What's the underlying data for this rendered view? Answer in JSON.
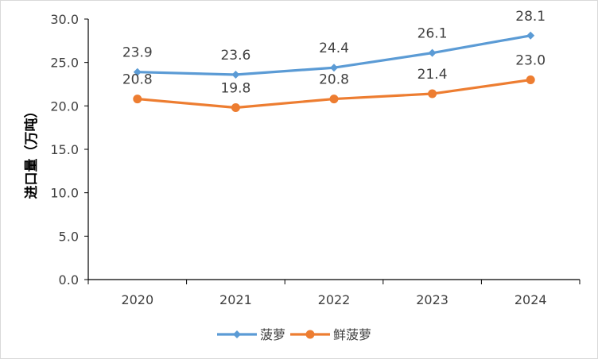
{
  "chart_data": {
    "type": "line",
    "title": "",
    "xlabel": "",
    "ylabel": "进口量（万吨）",
    "categories": [
      "2020",
      "2021",
      "2022",
      "2023",
      "2024"
    ],
    "ylim": [
      0,
      30
    ],
    "yticks": [
      "0.0",
      "5.0",
      "10.0",
      "15.0",
      "20.0",
      "25.0",
      "30.0"
    ],
    "ytick_values": [
      0,
      5,
      10,
      15,
      20,
      25,
      30
    ],
    "grid": false,
    "legend_position": "bottom",
    "series": [
      {
        "name": "菠萝",
        "values": [
          23.9,
          23.6,
          24.4,
          26.1,
          28.1
        ],
        "labels": [
          "23.9",
          "23.6",
          "24.4",
          "26.1",
          "28.1"
        ],
        "color": "#5b9bd5",
        "marker": "diamond"
      },
      {
        "name": "鲜菠萝",
        "values": [
          20.8,
          19.8,
          20.8,
          21.4,
          23.0
        ],
        "labels": [
          "20.8",
          "19.8",
          "20.8",
          "21.4",
          "23.0"
        ],
        "color": "#ed7d31",
        "marker": "circle"
      }
    ]
  }
}
